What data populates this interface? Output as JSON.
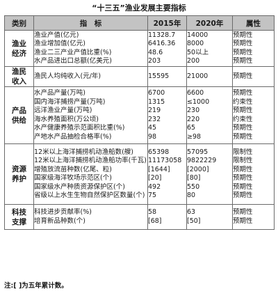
{
  "title": "“十三五”渔业发展主要指标",
  "headers": {
    "category": "类别",
    "indicator": "指　标",
    "y2015": "2015年",
    "y2020": "2020年",
    "attribute": "属性"
  },
  "groups": [
    {
      "category": [
        "渔业",
        "经济"
      ],
      "rows": [
        {
          "name": "渔业产值(亿元)",
          "v2015": "11328.7",
          "v2020": "14000",
          "attr": "预期性"
        },
        {
          "name": "渔业增加值(亿元)",
          "v2015": "6416.36",
          "v2020": "8000",
          "attr": "预期性"
        },
        {
          "name": "渔业二三产业产值比重(%)",
          "v2015": "48.6",
          "v2020": "50以上",
          "attr": "预期性"
        },
        {
          "name": "水产品进出口总额(亿美元)",
          "v2015": "203",
          "v2020": "200",
          "attr": "预期性"
        }
      ]
    },
    {
      "category": [
        "渔民",
        "收入"
      ],
      "rows": [
        {
          "name": "渔民人均纯收入(元/年)",
          "v2015": "15595",
          "v2020": "21000",
          "attr": "预期性"
        }
      ]
    },
    {
      "category": [
        "产品",
        "供给"
      ],
      "rows": [
        {
          "name": "水产品产量(万吨)",
          "v2015": "6700",
          "v2020": "6600",
          "attr": "预期性"
        },
        {
          "name": "国内海洋捕捞产量(万吨)",
          "v2015": "1315",
          "v2020": "≤1000",
          "attr": "约束性"
        },
        {
          "name": "远洋渔业产量(万吨)",
          "v2015": "219",
          "v2020": "230",
          "attr": "预期性"
        },
        {
          "name": "海水养殖面积(万公顷)",
          "v2015": "232",
          "v2020": "220",
          "attr": "约束性"
        },
        {
          "name": "水产健康养殖示范面积比重(%)",
          "v2015": "45",
          "v2020": "65",
          "attr": "预期性"
        },
        {
          "name": "产地水产品抽检合格率(%)",
          "v2015": "98",
          "v2020": "≥98",
          "attr": "预期性"
        }
      ]
    },
    {
      "category": [
        "资源",
        "养护"
      ],
      "rows": [
        {
          "name": "12米以上海洋捕捞机动渔船数(艘)",
          "v2015": "65398",
          "v2020": "57095",
          "attr": "限制性"
        },
        {
          "name": "12米以上海洋捕捞机动渔船功率(千瓦)",
          "v2015": "11173058",
          "v2020": "9822229",
          "attr": "限制性"
        },
        {
          "name": "增殖放流苗种数(亿尾、粒)",
          "v2015": "[1644]",
          "v2020": "[2000]",
          "attr": "预期性"
        },
        {
          "name": "国家级海洋牧场示范区(个)",
          "v2015": "[20]",
          "v2020": "[80]",
          "attr": "预期性"
        },
        {
          "name": "国家级水产种质资源保护区(个)",
          "v2015": "492",
          "v2020": "550",
          "attr": "预期性"
        },
        {
          "name": "省级以上水生生物自然保护区数量(个)",
          "v2015": "75",
          "v2020": "80",
          "attr": "预期性"
        }
      ]
    },
    {
      "category": [
        "科技",
        "支撑"
      ],
      "rows": [
        {
          "name": "科技进步贡献率(%)",
          "v2015": "58",
          "v2020": "63",
          "attr": "预期性"
        },
        {
          "name": "培育新品种数(个)",
          "v2015": "[68]",
          "v2020": "[50]",
          "attr": "预期性"
        }
      ]
    }
  ],
  "note": "注:[ ]为五年累计数。"
}
